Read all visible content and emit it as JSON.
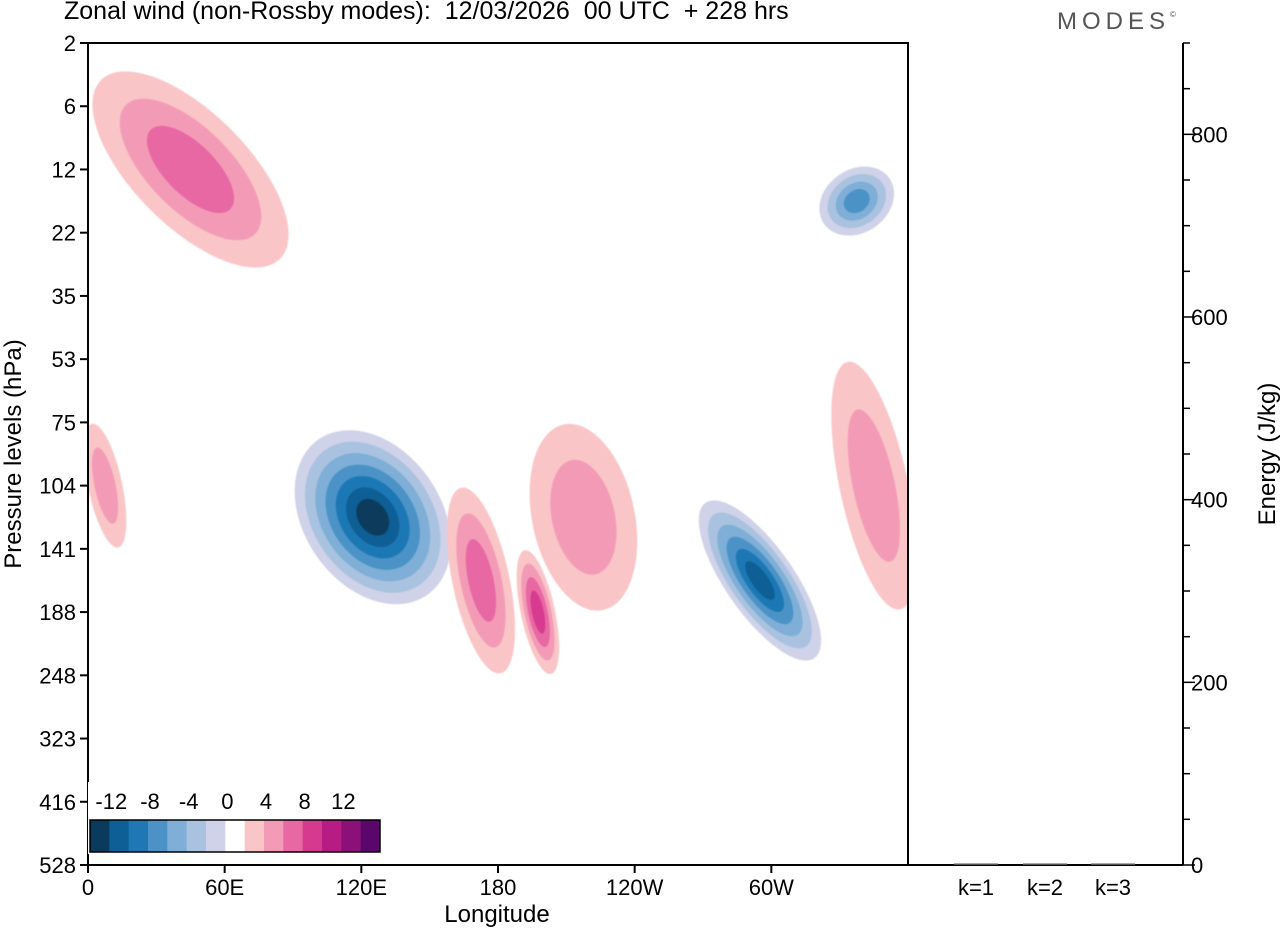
{
  "header": {
    "title": "Zonal wind (non-Rossby modes):  12/03/2026  00 UTC  + 228 hrs",
    "logo": "MODES",
    "logo_mark": "©"
  },
  "chart_data": [
    {
      "type": "heatmap",
      "title": "Zonal wind (non-Rossby modes):  12/03/2026  00 UTC  + 228 hrs",
      "xlabel": "Longitude",
      "ylabel": "Pressure levels (hPa)",
      "x_ticks": [
        "0",
        "60E",
        "120E",
        "180",
        "120W",
        "60W"
      ],
      "y_ticks": [
        "2",
        "6",
        "12",
        "22",
        "35",
        "53",
        "75",
        "104",
        "141",
        "188",
        "248",
        "323",
        "416",
        "528"
      ],
      "colorbar": {
        "labels": [
          "-12",
          "-8",
          "-4",
          "0",
          "4",
          "8",
          "12"
        ],
        "levels": [
          -14,
          -12,
          -10,
          -8,
          -6,
          -4,
          -2,
          2,
          4,
          6,
          8,
          10,
          12,
          14
        ],
        "colors": [
          "#0a3b5c",
          "#0d5f95",
          "#1f78b4",
          "#4b93c7",
          "#7fafd6",
          "#a9c2df",
          "#cfd2e8",
          "#ffffff",
          "#fac5c7",
          "#f39bb6",
          "#e868a3",
          "#d63a8f",
          "#b71c84",
          "#8b1178",
          "#5b066b"
        ]
      },
      "features": [
        {
          "name": "upper-left-positive-streaks",
          "value": 6,
          "lon": [
            20,
            70
          ],
          "level": [
            2,
            35
          ]
        },
        {
          "name": "jet-negative-core",
          "value": -13,
          "lon": [
            95,
            155
          ],
          "level": [
            75,
            188
          ]
        },
        {
          "name": "pacific-positive",
          "value": 6,
          "lon": [
            160,
            185
          ],
          "level": [
            104,
            248
          ]
        },
        {
          "name": "dateline-positive-core",
          "value": 8,
          "lon": [
            190,
            205
          ],
          "level": [
            141,
            248
          ]
        },
        {
          "name": "central-pacific-positive",
          "value": 3,
          "lon": [
            195,
            240
          ],
          "level": [
            75,
            188
          ]
        },
        {
          "name": "america-negative-core",
          "value": -12,
          "lon": [
            280,
            310
          ],
          "level": [
            104,
            248
          ]
        },
        {
          "name": "upper-right-negative",
          "value": -7,
          "lon": [
            320,
            355
          ],
          "level": [
            12,
            22
          ]
        },
        {
          "name": "right-positive",
          "value": 4,
          "lon": [
            330,
            360
          ],
          "level": [
            53,
            188
          ]
        },
        {
          "name": "left-edge-positive",
          "value": 4,
          "lon": [
            0,
            15
          ],
          "level": [
            75,
            141
          ]
        }
      ]
    },
    {
      "type": "bar",
      "ylabel": "Energy (J/kg)",
      "categories": [
        "k=1",
        "k=2",
        "k=3"
      ],
      "values": [
        1,
        1.5,
        1
      ],
      "ylim": [
        0,
        900
      ],
      "y_ticks": [
        "0",
        "200",
        "400",
        "600",
        "800"
      ]
    }
  ]
}
